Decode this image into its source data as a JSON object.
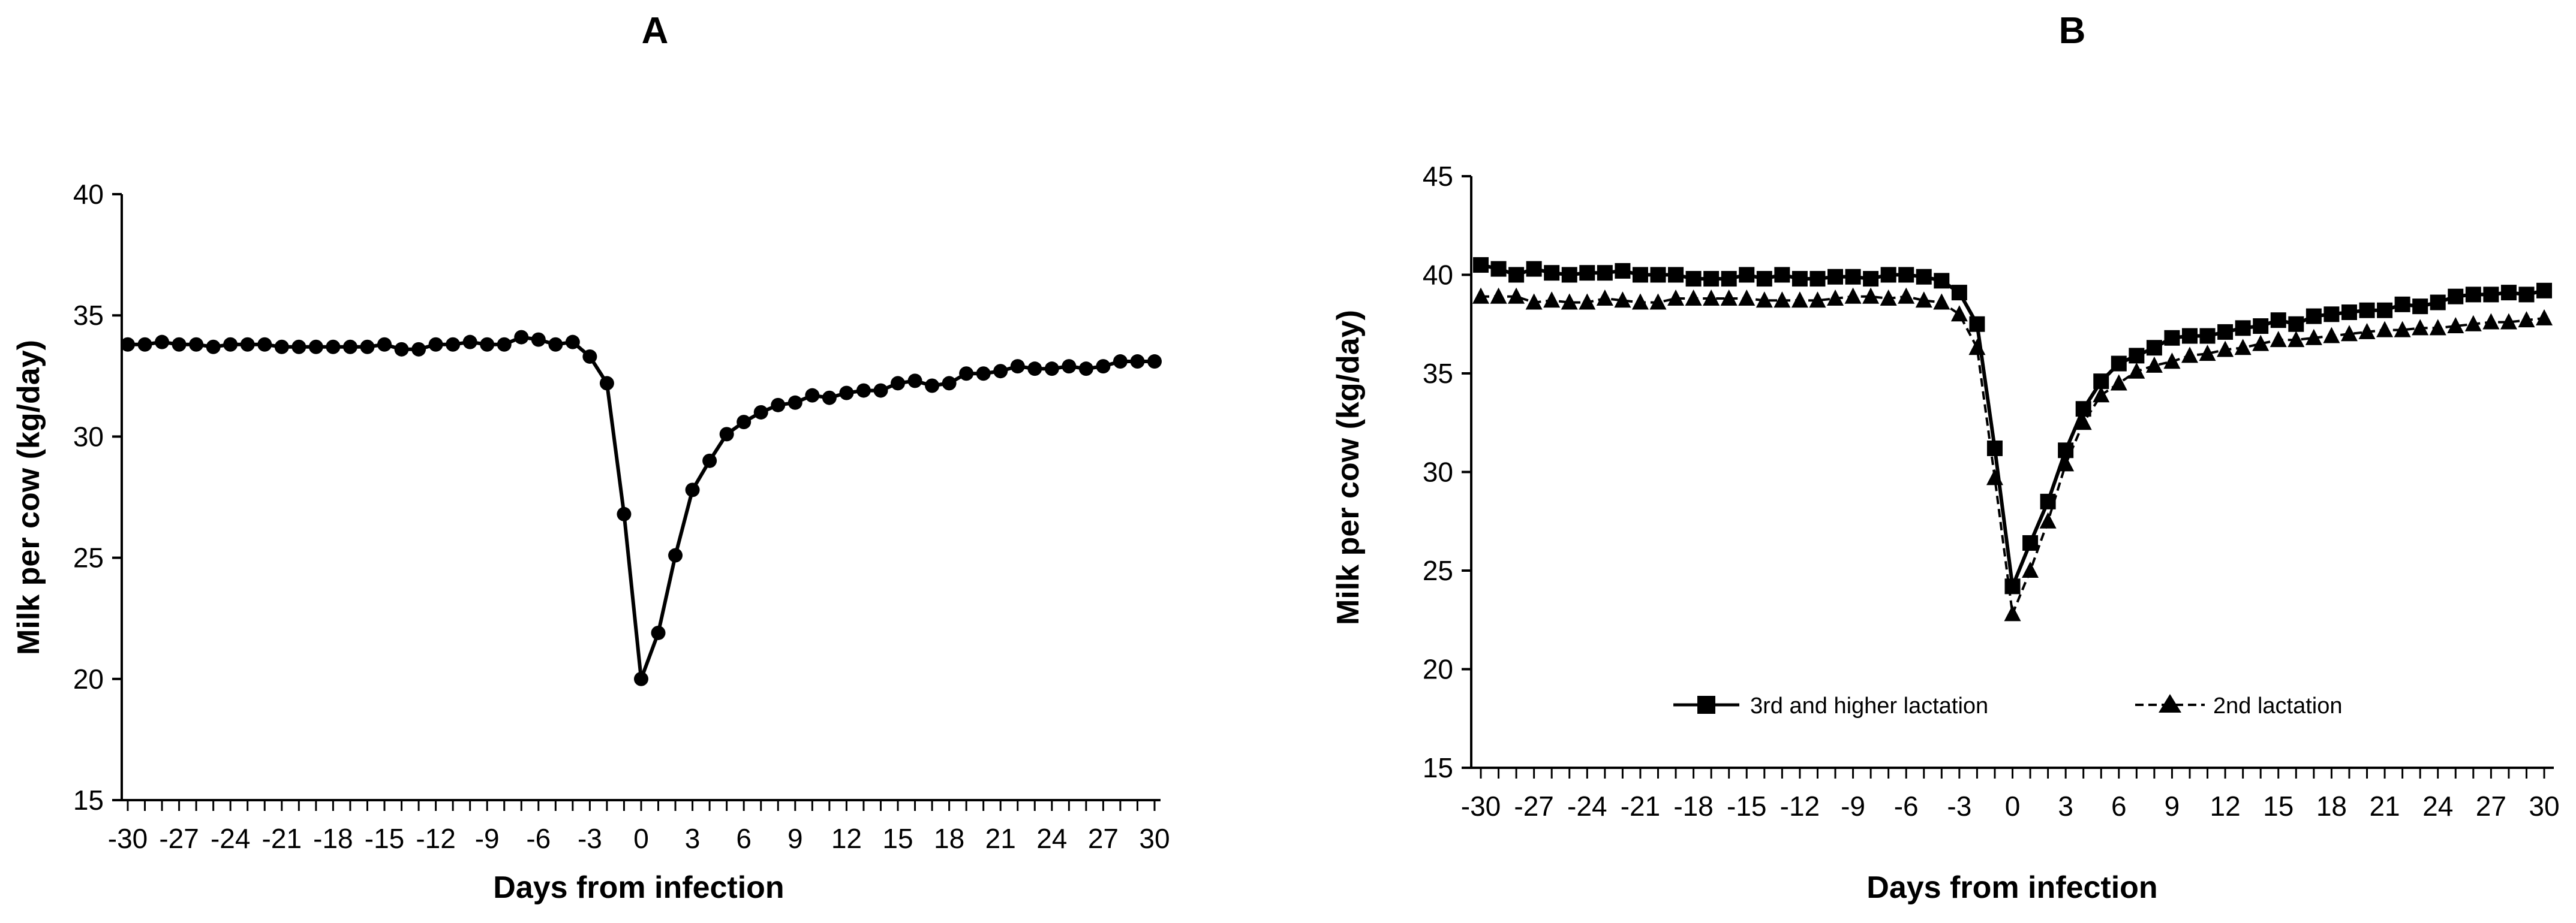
{
  "chart_data": [
    {
      "type": "line",
      "title": "A",
      "xlabel": "Days from infection",
      "ylabel": "Milk per cow (kg/day)",
      "xlim": [
        -30,
        30
      ],
      "ylim": [
        15,
        40
      ],
      "yticks": [
        "15",
        "20",
        "25",
        "30",
        "35",
        "40"
      ],
      "xticks": [
        "-30",
        "-27",
        "-24",
        "-21",
        "-18",
        "-15",
        "-12",
        "-9",
        "-6",
        "-3",
        "0",
        "3",
        "6",
        "9",
        "12",
        "15",
        "18",
        "21",
        "24",
        "27",
        "30"
      ],
      "grid": false,
      "legend": "none",
      "x": [
        -30,
        -29,
        -28,
        -27,
        -26,
        -25,
        -24,
        -23,
        -22,
        -21,
        -20,
        -19,
        -18,
        -17,
        -16,
        -15,
        -14,
        -13,
        -12,
        -11,
        -10,
        -9,
        -8,
        -7,
        -6,
        -5,
        -4,
        -3,
        -2,
        -1,
        0,
        1,
        2,
        3,
        4,
        5,
        6,
        7,
        8,
        9,
        10,
        11,
        12,
        13,
        14,
        15,
        16,
        17,
        18,
        19,
        20,
        21,
        22,
        23,
        24,
        25,
        26,
        27,
        28,
        29,
        30
      ],
      "series": [
        {
          "values": [
            33.8,
            33.8,
            33.9,
            33.8,
            33.8,
            33.7,
            33.8,
            33.8,
            33.8,
            33.7,
            33.7,
            33.7,
            33.7,
            33.7,
            33.7,
            33.8,
            33.6,
            33.6,
            33.8,
            33.8,
            33.9,
            33.8,
            33.8,
            34.1,
            34.0,
            33.8,
            33.9,
            33.3,
            32.2,
            26.8,
            20.0,
            21.9,
            25.1,
            27.8,
            29.0,
            30.1,
            30.6,
            31.0,
            31.3,
            31.4,
            31.7,
            31.6,
            31.8,
            31.9,
            31.9,
            32.2,
            32.3,
            32.1,
            32.2,
            32.6,
            32.6,
            32.7,
            32.9,
            32.8,
            32.8,
            32.9,
            32.8,
            32.9,
            33.1,
            33.1,
            33.1
          ],
          "color": "#000000",
          "marker": "circle",
          "line": "solid"
        }
      ]
    },
    {
      "type": "line",
      "title": "B",
      "xlabel": "Days from infection",
      "ylabel": "Milk per cow (kg/day)",
      "xlim": [
        -30,
        30
      ],
      "ylim": [
        15,
        45
      ],
      "yticks": [
        "15",
        "20",
        "25",
        "30",
        "35",
        "40",
        "45"
      ],
      "xticks": [
        "-30",
        "-27",
        "-24",
        "-21",
        "-18",
        "-15",
        "-12",
        "-9",
        "-6",
        "-3",
        "0",
        "3",
        "6",
        "9",
        "12",
        "15",
        "18",
        "21",
        "24",
        "27",
        "30"
      ],
      "grid": false,
      "legend": "bottom-center",
      "x": [
        -30,
        -29,
        -28,
        -27,
        -26,
        -25,
        -24,
        -23,
        -22,
        -21,
        -20,
        -19,
        -18,
        -17,
        -16,
        -15,
        -14,
        -13,
        -12,
        -11,
        -10,
        -9,
        -8,
        -7,
        -6,
        -5,
        -4,
        -3,
        -2,
        -1,
        0,
        1,
        2,
        3,
        4,
        5,
        6,
        7,
        8,
        9,
        10,
        11,
        12,
        13,
        14,
        15,
        16,
        17,
        18,
        19,
        20,
        21,
        22,
        23,
        24,
        25,
        26,
        27,
        28,
        29,
        30
      ],
      "series": [
        {
          "name": "3rd and higher lactation",
          "values": [
            40.5,
            40.3,
            40.0,
            40.3,
            40.1,
            40.0,
            40.1,
            40.1,
            40.2,
            40.0,
            40.0,
            40.0,
            39.8,
            39.8,
            39.8,
            40.0,
            39.8,
            40.0,
            39.8,
            39.8,
            39.9,
            39.9,
            39.8,
            40.0,
            40.0,
            39.9,
            39.7,
            39.1,
            37.5,
            31.2,
            24.2,
            26.4,
            28.5,
            31.1,
            33.2,
            34.6,
            35.5,
            35.9,
            36.3,
            36.8,
            36.9,
            36.9,
            37.1,
            37.3,
            37.4,
            37.7,
            37.5,
            37.9,
            38.0,
            38.1,
            38.2,
            38.2,
            38.5,
            38.4,
            38.6,
            38.9,
            39.0,
            39.0,
            39.1,
            39.0,
            39.2
          ],
          "color": "#000000",
          "marker": "square",
          "line": "solid"
        },
        {
          "name": "2nd lactation",
          "values": [
            38.9,
            38.9,
            38.9,
            38.6,
            38.7,
            38.6,
            38.6,
            38.8,
            38.7,
            38.6,
            38.6,
            38.8,
            38.8,
            38.8,
            38.8,
            38.8,
            38.7,
            38.7,
            38.7,
            38.7,
            38.8,
            38.9,
            38.9,
            38.8,
            38.9,
            38.7,
            38.6,
            38.0,
            36.3,
            29.7,
            22.8,
            25.0,
            27.5,
            30.4,
            32.5,
            33.9,
            34.5,
            35.1,
            35.4,
            35.6,
            35.9,
            36.0,
            36.2,
            36.3,
            36.5,
            36.7,
            36.7,
            36.8,
            36.9,
            37.0,
            37.1,
            37.2,
            37.2,
            37.3,
            37.3,
            37.4,
            37.5,
            37.6,
            37.6,
            37.7,
            37.8
          ],
          "color": "#000000",
          "marker": "triangle",
          "line": "dashed"
        }
      ]
    }
  ]
}
